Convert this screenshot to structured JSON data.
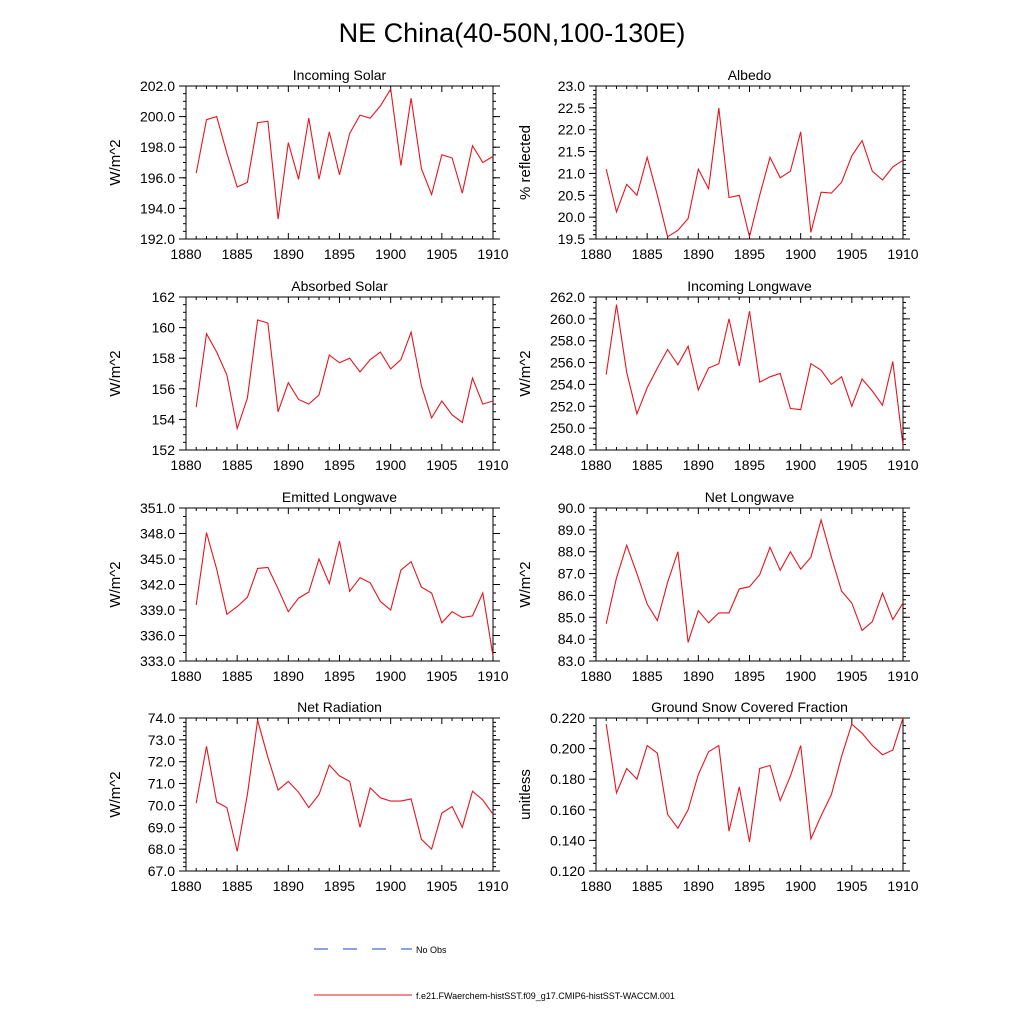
{
  "figure": {
    "title": "NE China(40-50N,100-130E)",
    "legend": [
      {
        "label": "No Obs",
        "color": "#1f3fbf",
        "dashed": true
      },
      {
        "label": "f.e21.FWaerchem-histSST.f09_g17.CMIP6-histSST-WACCM.001",
        "color": "#e8141e",
        "dashed": false
      }
    ]
  },
  "chart_data": [
    {
      "type": "line",
      "title": "Incoming Solar",
      "xlabel": "",
      "ylabel": "W/m^2",
      "xlim": [
        1880,
        1910
      ],
      "ylim": [
        192,
        202
      ],
      "x_ticks": [
        1880,
        1885,
        1890,
        1895,
        1900,
        1905,
        1910
      ],
      "x_tick_labels": [
        "1880",
        "1885",
        "1890",
        "1895",
        "1900",
        "1905",
        "1910"
      ],
      "y_ticks": [
        192,
        194,
        196,
        198,
        200,
        202
      ],
      "y_tick_labels": [
        "192.0",
        "194.0",
        "196.0",
        "198.0",
        "200.0",
        "202.0"
      ],
      "y_minor_step": 0.5,
      "series": [
        {
          "color": "#e8141e",
          "x": [
            1881,
            1882,
            1883,
            1884,
            1885,
            1886,
            1887,
            1888,
            1889,
            1890,
            1891,
            1892,
            1893,
            1894,
            1895,
            1896,
            1897,
            1898,
            1899,
            1900,
            1901,
            1902,
            1903,
            1904,
            1905,
            1906,
            1907,
            1908,
            1909,
            1910
          ],
          "values": [
            196.3,
            199.8,
            200.0,
            197.6,
            195.4,
            195.7,
            199.6,
            199.7,
            193.3,
            198.3,
            195.9,
            199.9,
            195.9,
            199.0,
            196.2,
            198.9,
            200.1,
            199.9,
            200.7,
            201.8,
            196.8,
            201.2,
            196.6,
            194.9,
            197.5,
            197.3,
            195.0,
            198.1,
            197.0,
            197.4
          ]
        }
      ]
    },
    {
      "type": "line",
      "title": "Albedo",
      "xlabel": "",
      "ylabel": "% reflected",
      "xlim": [
        1880,
        1910
      ],
      "ylim": [
        19.5,
        23
      ],
      "x_ticks": [
        1880,
        1885,
        1890,
        1895,
        1900,
        1905,
        1910
      ],
      "x_tick_labels": [
        "1880",
        "1885",
        "1890",
        "1895",
        "1900",
        "1905",
        "1910"
      ],
      "y_ticks": [
        19.5,
        20,
        20.5,
        21,
        21.5,
        22,
        22.5,
        23
      ],
      "y_tick_labels": [
        "19.5",
        "20.0",
        "20.5",
        "21.0",
        "21.5",
        "22.0",
        "22.5",
        "23.0"
      ],
      "y_minor_step": 0.1,
      "series": [
        {
          "color": "#e8141e",
          "x": [
            1881,
            1882,
            1883,
            1884,
            1885,
            1886,
            1887,
            1888,
            1889,
            1890,
            1891,
            1892,
            1893,
            1894,
            1895,
            1896,
            1897,
            1898,
            1899,
            1900,
            1901,
            1902,
            1903,
            1904,
            1905,
            1906,
            1907,
            1908,
            1909,
            1910
          ],
          "values": [
            21.1,
            20.12,
            20.75,
            20.5,
            21.37,
            20.5,
            19.55,
            19.7,
            19.97,
            21.1,
            20.65,
            22.5,
            20.45,
            20.5,
            19.55,
            20.5,
            21.37,
            20.9,
            21.05,
            21.95,
            19.65,
            20.57,
            20.55,
            20.8,
            21.4,
            21.75,
            21.05,
            20.85,
            21.15,
            21.3
          ]
        }
      ]
    },
    {
      "type": "line",
      "title": "Absorbed Solar",
      "xlabel": "",
      "ylabel": "W/m^2",
      "xlim": [
        1880,
        1910
      ],
      "ylim": [
        152,
        162
      ],
      "x_ticks": [
        1880,
        1885,
        1890,
        1895,
        1900,
        1905,
        1910
      ],
      "x_tick_labels": [
        "1880",
        "1885",
        "1890",
        "1895",
        "1900",
        "1905",
        "1910"
      ],
      "y_ticks": [
        152,
        154,
        156,
        158,
        160,
        162
      ],
      "y_tick_labels": [
        "152",
        "154",
        "156",
        "158",
        "160",
        "162"
      ],
      "y_minor_step": 0.5,
      "series": [
        {
          "color": "#e8141e",
          "x": [
            1881,
            1882,
            1883,
            1884,
            1885,
            1886,
            1887,
            1888,
            1889,
            1890,
            1891,
            1892,
            1893,
            1894,
            1895,
            1896,
            1897,
            1898,
            1899,
            1900,
            1901,
            1902,
            1903,
            1904,
            1905,
            1906,
            1907,
            1908,
            1909,
            1910
          ],
          "values": [
            154.8,
            159.6,
            158.4,
            156.9,
            153.4,
            155.4,
            160.5,
            160.3,
            154.5,
            156.4,
            155.3,
            155.0,
            155.6,
            158.2,
            157.7,
            158.0,
            157.1,
            157.9,
            158.4,
            157.3,
            157.9,
            159.7,
            156.2,
            154.1,
            155.2,
            154.3,
            153.8,
            156.7,
            155.0,
            155.2
          ]
        }
      ]
    },
    {
      "type": "line",
      "title": "Incoming Longwave",
      "xlabel": "",
      "ylabel": "W/m^2",
      "xlim": [
        1880,
        1910
      ],
      "ylim": [
        248,
        262
      ],
      "x_ticks": [
        1880,
        1885,
        1890,
        1895,
        1900,
        1905,
        1910
      ],
      "x_tick_labels": [
        "1880",
        "1885",
        "1890",
        "1895",
        "1900",
        "1905",
        "1910"
      ],
      "y_ticks": [
        248,
        250,
        252,
        254,
        256,
        258,
        260,
        262
      ],
      "y_tick_labels": [
        "248.0",
        "250.0",
        "252.0",
        "254.0",
        "256.0",
        "258.0",
        "260.0",
        "262.0"
      ],
      "y_minor_step": 0.5,
      "series": [
        {
          "color": "#e8141e",
          "x": [
            1881,
            1882,
            1883,
            1884,
            1885,
            1886,
            1887,
            1888,
            1889,
            1890,
            1891,
            1892,
            1893,
            1894,
            1895,
            1896,
            1897,
            1898,
            1899,
            1900,
            1901,
            1902,
            1903,
            1904,
            1905,
            1906,
            1907,
            1908,
            1909,
            1910
          ],
          "values": [
            254.9,
            261.3,
            255.1,
            251.3,
            253.7,
            255.5,
            257.2,
            255.8,
            257.5,
            253.5,
            255.5,
            255.9,
            260.0,
            255.7,
            260.7,
            254.2,
            254.7,
            255.0,
            251.8,
            251.7,
            255.9,
            255.3,
            254.0,
            254.7,
            252.0,
            254.5,
            253.4,
            252.1,
            256.1,
            248.4
          ]
        }
      ]
    },
    {
      "type": "line",
      "title": "Emitted Longwave",
      "xlabel": "",
      "ylabel": "W/m^2",
      "xlim": [
        1880,
        1910
      ],
      "ylim": [
        333,
        351
      ],
      "x_ticks": [
        1880,
        1885,
        1890,
        1895,
        1900,
        1905,
        1910
      ],
      "x_tick_labels": [
        "1880",
        "1885",
        "1890",
        "1895",
        "1900",
        "1905",
        "1910"
      ],
      "y_ticks": [
        333,
        336,
        339,
        342,
        345,
        348,
        351
      ],
      "y_tick_labels": [
        "333.0",
        "336.0",
        "339.0",
        "342.0",
        "345.0",
        "348.0",
        "351.0"
      ],
      "y_minor_step": 1,
      "series": [
        {
          "color": "#e8141e",
          "x": [
            1881,
            1882,
            1883,
            1884,
            1885,
            1886,
            1887,
            1888,
            1889,
            1890,
            1891,
            1892,
            1893,
            1894,
            1895,
            1896,
            1897,
            1898,
            1899,
            1900,
            1901,
            1902,
            1903,
            1904,
            1905,
            1906,
            1907,
            1908,
            1909,
            1910
          ],
          "values": [
            339.6,
            348.1,
            343.8,
            338.5,
            339.4,
            340.5,
            343.9,
            344.0,
            341.5,
            338.8,
            340.4,
            341.1,
            345.0,
            342.1,
            347.1,
            341.2,
            342.8,
            342.2,
            340.0,
            339.0,
            343.7,
            344.7,
            341.7,
            341.0,
            337.5,
            338.8,
            338.1,
            338.3,
            341.0,
            333.6
          ]
        }
      ]
    },
    {
      "type": "line",
      "title": "Net Longwave",
      "xlabel": "",
      "ylabel": "W/m^2",
      "xlim": [
        1880,
        1910
      ],
      "ylim": [
        83,
        90
      ],
      "x_ticks": [
        1880,
        1885,
        1890,
        1895,
        1900,
        1905,
        1910
      ],
      "x_tick_labels": [
        "1880",
        "1885",
        "1890",
        "1895",
        "1900",
        "1905",
        "1910"
      ],
      "y_ticks": [
        83,
        84,
        85,
        86,
        87,
        88,
        89,
        90
      ],
      "y_tick_labels": [
        "83.0",
        "84.0",
        "85.0",
        "86.0",
        "87.0",
        "88.0",
        "89.0",
        "90.0"
      ],
      "y_minor_step": 0.2,
      "series": [
        {
          "color": "#e8141e",
          "x": [
            1881,
            1882,
            1883,
            1884,
            1885,
            1886,
            1887,
            1888,
            1889,
            1890,
            1891,
            1892,
            1893,
            1894,
            1895,
            1896,
            1897,
            1898,
            1899,
            1900,
            1901,
            1902,
            1903,
            1904,
            1905,
            1906,
            1907,
            1908,
            1909,
            1910
          ],
          "values": [
            84.7,
            86.8,
            88.3,
            87.0,
            85.6,
            84.85,
            86.6,
            88.0,
            83.85,
            85.3,
            84.75,
            85.2,
            85.2,
            86.3,
            86.4,
            86.95,
            88.2,
            87.15,
            88.0,
            87.2,
            87.75,
            89.45,
            87.75,
            86.2,
            85.65,
            84.4,
            84.8,
            86.1,
            84.9,
            85.65
          ]
        }
      ]
    },
    {
      "type": "line",
      "title": "Net Radiation",
      "xlabel": "",
      "ylabel": "W/m^2",
      "xlim": [
        1880,
        1910
      ],
      "ylim": [
        67,
        74
      ],
      "x_ticks": [
        1880,
        1885,
        1890,
        1895,
        1900,
        1905,
        1910
      ],
      "x_tick_labels": [
        "1880",
        "1885",
        "1890",
        "1895",
        "1900",
        "1905",
        "1910"
      ],
      "y_ticks": [
        67,
        68,
        69,
        70,
        71,
        72,
        73,
        74
      ],
      "y_tick_labels": [
        "67.0",
        "68.0",
        "69.0",
        "70.0",
        "71.0",
        "72.0",
        "73.0",
        "74.0"
      ],
      "y_minor_step": 0.2,
      "series": [
        {
          "color": "#e8141e",
          "x": [
            1881,
            1882,
            1883,
            1884,
            1885,
            1886,
            1887,
            1888,
            1889,
            1890,
            1891,
            1892,
            1893,
            1894,
            1895,
            1896,
            1897,
            1898,
            1899,
            1900,
            1901,
            1902,
            1903,
            1904,
            1905,
            1906,
            1907,
            1908,
            1909,
            1910
          ],
          "values": [
            70.1,
            72.7,
            70.15,
            69.9,
            67.9,
            70.5,
            73.9,
            72.2,
            70.7,
            71.1,
            70.6,
            69.9,
            70.5,
            71.85,
            71.35,
            71.1,
            69.0,
            70.8,
            70.35,
            70.2,
            70.2,
            70.3,
            68.45,
            68.0,
            69.65,
            69.95,
            69.0,
            70.65,
            70.25,
            69.6
          ]
        }
      ]
    },
    {
      "type": "line",
      "title": "Ground Snow Covered Fraction",
      "xlabel": "",
      "ylabel": "unitless",
      "xlim": [
        1880,
        1910
      ],
      "ylim": [
        0.12,
        0.22
      ],
      "x_ticks": [
        1880,
        1885,
        1890,
        1895,
        1900,
        1905,
        1910
      ],
      "x_tick_labels": [
        "1880",
        "1885",
        "1890",
        "1895",
        "1900",
        "1905",
        "1910"
      ],
      "y_ticks": [
        0.12,
        0.14,
        0.16,
        0.18,
        0.2,
        0.22
      ],
      "y_tick_labels": [
        "0.120",
        "0.140",
        "0.160",
        "0.180",
        "0.200",
        "0.220"
      ],
      "y_minor_step": 0.005,
      "series": [
        {
          "color": "#e8141e",
          "x": [
            1881,
            1882,
            1883,
            1884,
            1885,
            1886,
            1887,
            1888,
            1889,
            1890,
            1891,
            1892,
            1893,
            1894,
            1895,
            1896,
            1897,
            1898,
            1899,
            1900,
            1901,
            1902,
            1903,
            1904,
            1905,
            1906,
            1907,
            1908,
            1909,
            1910
          ],
          "values": [
            0.216,
            0.171,
            0.187,
            0.18,
            0.202,
            0.197,
            0.157,
            0.148,
            0.16,
            0.183,
            0.198,
            0.202,
            0.146,
            0.175,
            0.139,
            0.187,
            0.189,
            0.166,
            0.182,
            0.202,
            0.141,
            0.156,
            0.17,
            0.195,
            0.216,
            0.21,
            0.202,
            0.196,
            0.199,
            0.22
          ]
        }
      ]
    }
  ]
}
